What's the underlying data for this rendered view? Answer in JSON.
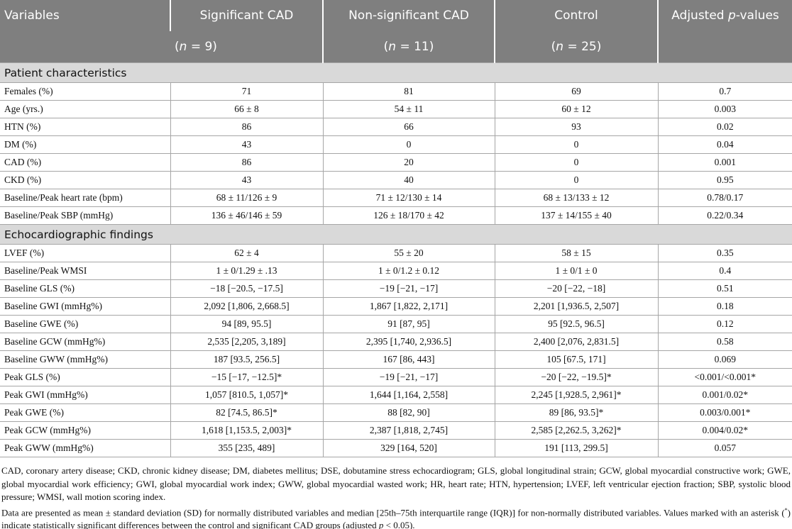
{
  "table": {
    "header": [
      [
        "Variables"
      ],
      [
        "Significant CAD"
      ],
      [
        "Non-significant CAD"
      ],
      [
        "Control"
      ],
      [
        "Adjusted ",
        "p",
        "-values"
      ]
    ],
    "subheader": [
      [
        "(",
        "n",
        " = 9)"
      ],
      [
        "(",
        "n",
        " = 11)"
      ],
      [
        "(",
        "n",
        " = 25)"
      ]
    ],
    "sections": [
      {
        "title": "Patient characteristics",
        "rows": [
          [
            "Females (%)",
            "71",
            "81",
            "69",
            "0.7"
          ],
          [
            "Age (yrs.)",
            "66 ± 8",
            "54 ± 11",
            "60 ± 12",
            "0.003"
          ],
          [
            "HTN (%)",
            "86",
            "66",
            "93",
            "0.02"
          ],
          [
            "DM (%)",
            "43",
            "0",
            "0",
            "0.04"
          ],
          [
            "CAD (%)",
            "86",
            "20",
            "0",
            "0.001"
          ],
          [
            "CKD (%)",
            "43",
            "40",
            "0",
            "0.95"
          ],
          [
            "Baseline/Peak heart rate (bpm)",
            "68 ± 11/126 ± 9",
            "71 ± 12/130 ± 14",
            "68 ± 13/133 ± 12",
            "0.78/0.17"
          ],
          [
            "Baseline/Peak SBP (mmHg)",
            "136 ± 46/146 ± 59",
            "126 ± 18/170 ± 42",
            "137 ± 14/155 ± 40",
            "0.22/0.34"
          ]
        ]
      },
      {
        "title": "Echocardiographic findings",
        "rows": [
          [
            "LVEF (%)",
            "62 ± 4",
            "55 ± 20",
            "58 ± 15",
            "0.35"
          ],
          [
            "Baseline/Peak WMSI",
            "1 ± 0/1.29 ± .13",
            "1 ± 0/1.2 ± 0.12",
            "1 ± 0/1 ± 0",
            "0.4"
          ],
          [
            "Baseline GLS (%)",
            "−18 [−20.5, −17.5]",
            "−19 [−21, −17]",
            "−20 [−22, −18]",
            "0.51"
          ],
          [
            "Baseline GWI (mmHg%)",
            "2,092 [1,806, 2,668.5]",
            "1,867 [1,822, 2,171]",
            "2,201 [1,936.5, 2,507]",
            "0.18"
          ],
          [
            "Baseline GWE (%)",
            "94 [89, 95.5]",
            "91 [87, 95]",
            "95 [92.5, 96.5]",
            "0.12"
          ],
          [
            "Baseline GCW (mmHg%)",
            "2,535 [2,205, 3,189]",
            "2,395 [1,740, 2,936.5]",
            "2,400 [2,076, 2,831.5]",
            "0.58"
          ],
          [
            "Baseline GWW (mmHg%)",
            "187 [93.5, 256.5]",
            "167 [86, 443]",
            "105 [67.5, 171]",
            "0.069"
          ],
          [
            "Peak GLS (%)",
            "−15 [−17, −12.5]*",
            "−19 [−21, −17]",
            "−20 [−22, −19.5]*",
            "<0.001/<0.001*"
          ],
          [
            "Peak GWI (mmHg%)",
            "1,057 [810.5, 1,057]*",
            "1,644 [1,164, 2,558]",
            "2,245 [1,928.5, 2,961]*",
            "0.001/0.02*"
          ],
          [
            "Peak GWE (%)",
            "82 [74.5, 86.5]*",
            "88 [82, 90]",
            "89 [86, 93.5]*",
            "0.003/0.001*"
          ],
          [
            "Peak GCW (mmHg%)",
            "1,618 [1,153.5, 2,003]*",
            "2,387 [1,818, 2,745]",
            "2,585 [2,262.5, 3,262]*",
            "0.004/0.02*"
          ],
          [
            "Peak GWW (mmHg%)",
            "355 [235, 489]",
            "329 [164, 520]",
            "191 [113, 299.5]",
            "0.057"
          ]
        ]
      }
    ]
  },
  "footnotes": [
    [
      "CAD, coronary artery disease; CKD, chronic kidney disease; DM, diabetes mellitus; DSE, dobutamine stress echocardiogram; GLS, global longitudinal strain; GCW, global myocardial constructive work; GWE, global myocardial work efficiency; GWI, global myocardial work index; GWW, global myocardial wasted work; HR, heart rate; HTN, hypertension; LVEF, left ventricular ejection fraction; SBP, systolic blood pressure; WMSI, wall motion scoring index."
    ],
    [
      "Data are presented as mean ± standard deviation (SD) for normally distributed variables and median [25th–75th interquartile range (IQR)] for non-normally distributed variables. Values marked with an asterisk (",
      "*",
      ") indicate statistically significant differences between the control and significant CAD groups (adjusted ",
      "p",
      " < 0.05)."
    ]
  ]
}
